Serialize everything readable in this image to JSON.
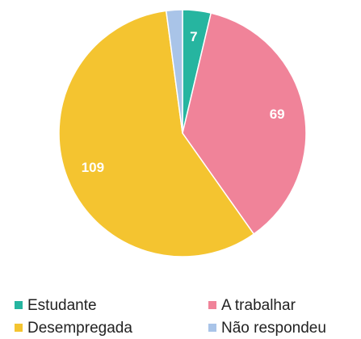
{
  "chart_data": {
    "type": "pie",
    "categories": [
      "Estudante",
      "A trabalhar",
      "Desempregada",
      "Não respondeu"
    ],
    "values": [
      7,
      69,
      109,
      4
    ],
    "value_labels": [
      "7",
      "69",
      "109",
      null
    ],
    "colors": [
      "#26b5a0",
      "#f08399",
      "#f4c430",
      "#a9c4e8"
    ],
    "legend": "bottom"
  }
}
